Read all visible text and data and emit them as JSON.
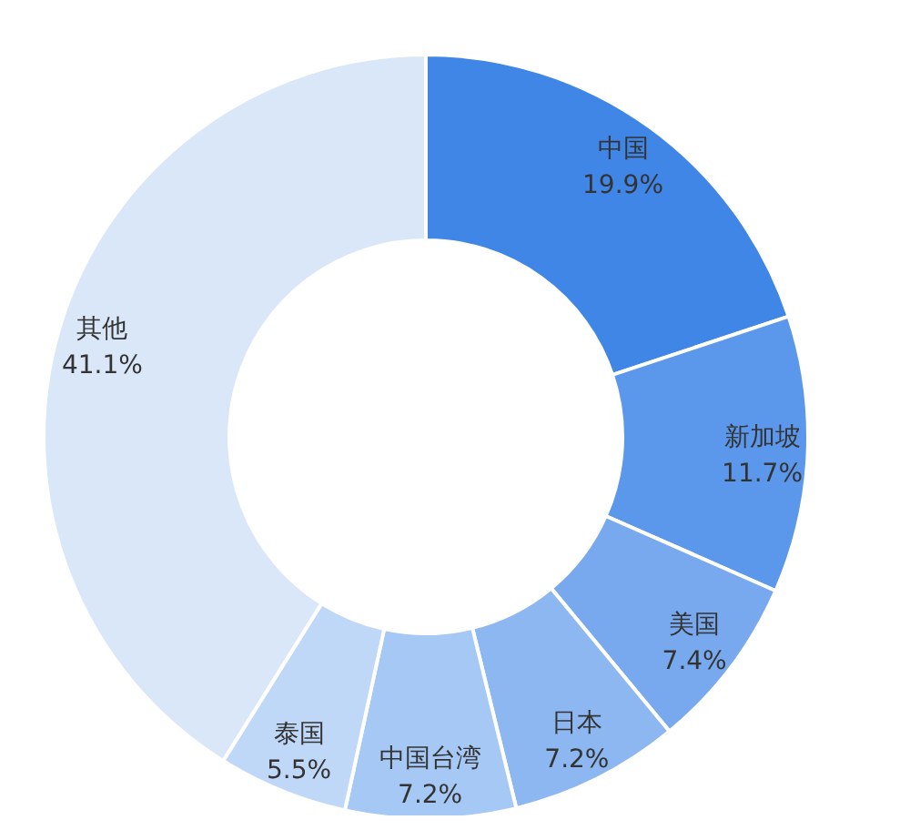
{
  "chart_data": {
    "type": "donut",
    "categories": [
      "中国",
      "新加坡",
      "美国",
      "日本",
      "中国台湾",
      "泰国",
      "其他"
    ],
    "values": [
      19.9,
      11.7,
      7.4,
      7.2,
      7.2,
      5.5,
      41.1
    ],
    "value_labels": [
      "19.9%",
      "11.7%",
      "7.4%",
      "7.2%",
      "7.2%",
      "5.5%",
      "41.1%"
    ],
    "colors": [
      "#3f86e6",
      "#5b97ea",
      "#78a9ee",
      "#8db7f0",
      "#a6c8f5",
      "#c0d8f8",
      "#d9e7f8"
    ]
  }
}
